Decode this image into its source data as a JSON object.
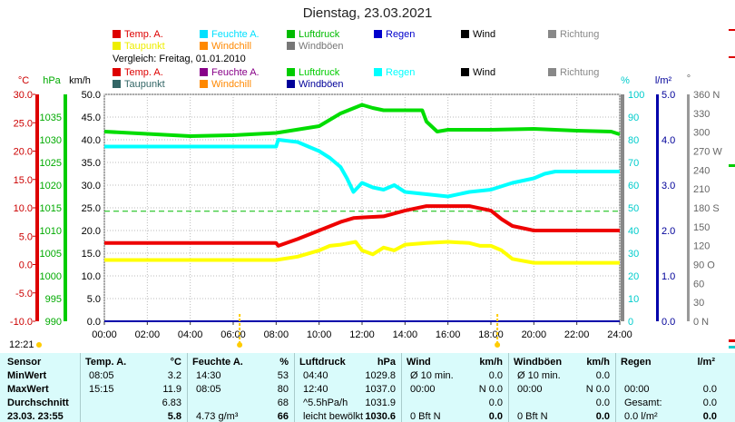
{
  "title": "Dienstag, 23.03.2021",
  "legend_main": [
    {
      "label": "Temp. A.",
      "color": "#dd0000"
    },
    {
      "label": "Feuchte A.",
      "color": "#00e0ff"
    },
    {
      "label": "Luftdruck",
      "color": "#00bb00"
    },
    {
      "label": "Regen",
      "color": "#0000cc"
    },
    {
      "label": "Wind",
      "color": "#000000"
    },
    {
      "label": "Richtung",
      "color": "#888888"
    },
    {
      "label": "Taupunkt",
      "color": "#eeee00"
    },
    {
      "label": "Windchill",
      "color": "#ff8800"
    },
    {
      "label": "Windböen",
      "color": "#777777"
    }
  ],
  "comparison_label": "Vergleich: Freitag, 01.01.2010",
  "legend_compare": [
    {
      "label": "Temp. A.",
      "color": "#dd0000"
    },
    {
      "label": "Feuchte A.",
      "color": "#880088"
    },
    {
      "label": "Luftdruck",
      "color": "#00cc00"
    },
    {
      "label": "Regen",
      "color": "#00ffff"
    },
    {
      "label": "Wind",
      "color": "#000000"
    },
    {
      "label": "Richtung",
      "color": "#888888"
    },
    {
      "label": "Taupunkt",
      "color": "#336666"
    },
    {
      "label": "Windchill",
      "color": "#ff8800"
    },
    {
      "label": "Windböen",
      "color": "#000099"
    }
  ],
  "units": {
    "temp": "°C",
    "pressure": "hPa",
    "speed": "km/h",
    "humidity": "%",
    "rain": "l/m²",
    "direction": "°"
  },
  "current_time": "12:21",
  "chart_data": {
    "type": "line",
    "x_ticks": [
      "00:00",
      "02:00",
      "04:00",
      "06:00",
      "08:00",
      "10:00",
      "12:00",
      "14:00",
      "16:00",
      "18:00",
      "20:00",
      "22:00",
      "24:00"
    ],
    "axes": {
      "temp": {
        "range": [
          -10,
          30
        ],
        "ticks": [
          "30.0",
          "25.0",
          "20.0",
          "15.0",
          "10.0",
          "5.0",
          "0.0",
          "-5.0",
          "-10.0"
        ]
      },
      "pressure": {
        "range": [
          990,
          1040
        ],
        "ticks": [
          "1035",
          "1030",
          "1025",
          "1020",
          "1015",
          "1010",
          "1005",
          "1000",
          "995",
          "990"
        ]
      },
      "speed": {
        "range": [
          0,
          50
        ],
        "ticks": [
          "50.0",
          "45.0",
          "40.0",
          "35.0",
          "30.0",
          "25.0",
          "20.0",
          "15.0",
          "10.0",
          "5.0",
          "0.0"
        ]
      },
      "humidity": {
        "range": [
          0,
          100
        ],
        "ticks": [
          "100",
          "90",
          "80",
          "70",
          "60",
          "50",
          "40",
          "30",
          "20",
          "10",
          "0"
        ]
      },
      "rain": {
        "range": [
          0,
          5
        ],
        "ticks": [
          "5.0",
          "4.0",
          "3.0",
          "2.0",
          "1.0",
          "0.0"
        ]
      },
      "direction": {
        "range": [
          0,
          360
        ],
        "ticks": [
          "360 N",
          "330",
          "300",
          "270 W",
          "240",
          "210",
          "180 S",
          "150",
          "120",
          "90 O",
          "60",
          "30",
          "0 N"
        ]
      }
    },
    "series": [
      {
        "name": "Temp. A.",
        "axis": "temp",
        "color": "#ee0000",
        "x": [
          0,
          8,
          8.1,
          9,
          10,
          11,
          11.6,
          12,
          13,
          14,
          15,
          16,
          17,
          18,
          18.5,
          19,
          20,
          24
        ],
        "y": [
          3.8,
          3.8,
          3.3,
          4.5,
          6,
          7.5,
          8.2,
          8.3,
          8.5,
          9.5,
          10.3,
          10.3,
          10.3,
          9.5,
          8,
          6.8,
          6,
          6
        ]
      },
      {
        "name": "Feuchte A.",
        "axis": "humidity",
        "color": "#00ffff",
        "x": [
          0,
          8,
          8.1,
          9,
          9.5,
          10,
          10.5,
          11,
          11.3,
          11.6,
          12,
          12.5,
          13,
          13.5,
          14,
          15,
          16,
          17,
          18,
          19,
          20,
          20.5,
          21,
          24
        ],
        "y": [
          77,
          77,
          80,
          79,
          77,
          75,
          72,
          68,
          63,
          57,
          61,
          59,
          58,
          60,
          57,
          56,
          55,
          57,
          58,
          61,
          63,
          65,
          66,
          66
        ]
      },
      {
        "name": "Luftdruck",
        "axis": "pressure",
        "color": "#00dd00",
        "x": [
          0,
          2,
          4,
          6,
          8,
          10,
          11,
          12,
          12.5,
          13,
          14,
          14.8,
          15,
          15.5,
          16,
          18,
          20,
          22,
          23.6,
          24
        ],
        "y": [
          1031.8,
          1031.3,
          1030.8,
          1031,
          1031.5,
          1033,
          1035.8,
          1037.7,
          1037,
          1036.5,
          1036.5,
          1036.5,
          1034,
          1031.8,
          1032.2,
          1032.2,
          1032.4,
          1032,
          1031.8,
          1031.2
        ]
      },
      {
        "name": "Taupunkt",
        "axis": "temp",
        "color": "#ffff00",
        "x": [
          0,
          8,
          9,
          10,
          10.5,
          11,
          11.7,
          12,
          12.5,
          13,
          13.5,
          14,
          15,
          16,
          17,
          17.5,
          18,
          18.5,
          19,
          20,
          22,
          24
        ],
        "y": [
          0.8,
          0.8,
          1.4,
          2.5,
          3.3,
          3.5,
          4.0,
          2.5,
          1.8,
          3,
          2.5,
          3.5,
          3.8,
          4,
          3.8,
          3.3,
          3.3,
          2.5,
          1,
          0.3,
          0.3,
          0.3
        ]
      },
      {
        "name": "Wind",
        "axis": "speed",
        "color": "#0000aa",
        "x": [
          0,
          24
        ],
        "y": [
          0,
          0
        ]
      }
    ],
    "reference_lines": [
      {
        "axis": "humidity",
        "value": 48.5,
        "style": "dashed",
        "color": "#00bb00"
      }
    ],
    "markers_x": [
      6.3,
      18.3
    ]
  },
  "table": {
    "col_temp": {
      "title": "Temp. A.",
      "unit": "°C"
    },
    "col_hum": {
      "title": "Feuchte A.",
      "unit": "%"
    },
    "col_press": {
      "title": "Luftdruck",
      "unit": "hPa"
    },
    "col_wind": {
      "title": "Wind",
      "unit": "km/h"
    },
    "col_gust": {
      "title": "Windböen",
      "unit": "km/h"
    },
    "col_rain": {
      "title": "Regen",
      "unit": "l/m²"
    },
    "rows": [
      {
        "label": "Sensor"
      },
      {
        "label": "MinWert",
        "temp_t": "08:05",
        "temp_v": "3.2",
        "hum_t": "14:30",
        "hum_v": "53",
        "press_t": "04:40",
        "press_v": "1029.8",
        "wind_t": "Ø 10 min.",
        "wind_v": "0.0",
        "gust_t": "Ø 10 min.",
        "gust_v": "0.0",
        "rain_t": "",
        "rain_v": ""
      },
      {
        "label": "MaxWert",
        "temp_t": "15:15",
        "temp_v": "11.9",
        "hum_t": "08:05",
        "hum_v": "80",
        "press_t": "12:40",
        "press_v": "1037.0",
        "wind_t": "00:00",
        "wind_v": "N 0.0",
        "gust_t": "00:00",
        "gust_v": "N 0.0",
        "rain_t": "00:00",
        "rain_v": "0.0"
      },
      {
        "label": "Durchschnitt",
        "temp_t": "",
        "temp_v": "6.83",
        "hum_t": "",
        "hum_v": "68",
        "press_t": "^5.5hPa/h",
        "press_v": "1031.9",
        "wind_t": "",
        "wind_v": "0.0",
        "gust_t": "",
        "gust_v": "0.0",
        "rain_t": "Gesamt:",
        "rain_v": "0.0"
      },
      {
        "label": "23.03. 23:55",
        "temp_t": "",
        "temp_v": "5.8",
        "hum_t": "4.73 g/m³",
        "hum_v": "66",
        "press_t": "leicht bewölkt",
        "press_v": "1030.6",
        "wind_t": "0 Bft N",
        "wind_v": "0.0",
        "gust_t": "0 Bft N",
        "gust_v": "0.0",
        "rain_t": "0.0 l/m²",
        "rain_v": "0.0"
      }
    ]
  }
}
